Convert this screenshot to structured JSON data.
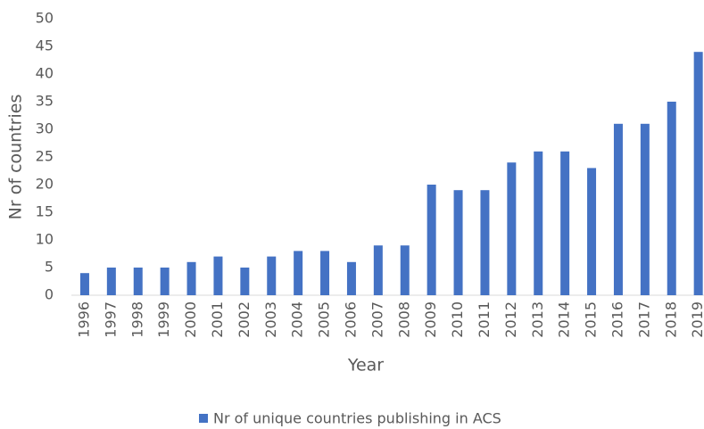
{
  "chart_data": {
    "type": "bar",
    "categories": [
      "1996",
      "1997",
      "1998",
      "1999",
      "2000",
      "2001",
      "2002",
      "2003",
      "2004",
      "2005",
      "2006",
      "2007",
      "2008",
      "2009",
      "2010",
      "2011",
      "2012",
      "2013",
      "2014",
      "2015",
      "2016",
      "2017",
      "2018",
      "2019"
    ],
    "series": [
      {
        "name": "Nr of unique countries publishing in ACS",
        "color": "#4472c4",
        "values": [
          4,
          5,
          5,
          5,
          6,
          7,
          5,
          7,
          8,
          8,
          6,
          9,
          9,
          20,
          19,
          19,
          24,
          26,
          26,
          23,
          31,
          31,
          35,
          44
        ]
      }
    ],
    "ylim": [
      0,
      50
    ],
    "yticks": [
      0,
      5,
      10,
      15,
      20,
      25,
      30,
      35,
      40,
      45,
      50
    ],
    "xlabel": "Year",
    "ylabel": "Nr of countries",
    "grid": false,
    "legend": "bottom"
  }
}
